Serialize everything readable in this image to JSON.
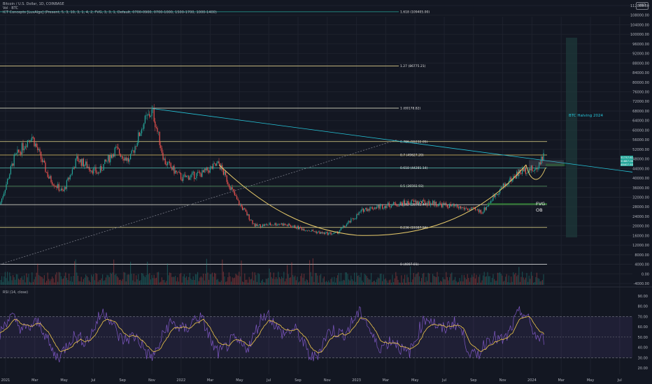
{
  "header": {
    "symbol": "Bitcoin / U.S. Dollar, 1D, COINBASE",
    "vol": "Vol · BTC",
    "indicator": "ICT Concepts [LuxAlgo] (Present, 5, 3, 10, 3, 1, 4, 2, FVG, 3, 3, 1, Default, 0700-0900, 0700-1000, 1500-1700, 1000-1400)"
  },
  "currency_button": "USD",
  "price_axis": [
    "112000.00",
    "108000.00",
    "104000.00",
    "100000.00",
    "96000.00",
    "92000.00",
    "88000.00",
    "84000.00",
    "80000.00",
    "76000.00",
    "72000.00",
    "68000.00",
    "64000.00",
    "60000.00",
    "56000.00",
    "52000.00",
    "48000.00",
    "44000.00",
    "40000.00",
    "36000.00",
    "32000.00",
    "28000.00",
    "24000.00",
    "20000.00",
    "16000.00",
    "12000.00",
    "8000.00",
    "4000.00",
    "0.00",
    "-4000.00"
  ],
  "fib_levels": [
    {
      "label": "1.618 (109405.00)",
      "price": 109405,
      "color": "#26a69a"
    },
    {
      "label": "1.27 (86775.21)",
      "price": 86775,
      "color": "#d9c98a"
    },
    {
      "label": "1 (69178.82)",
      "price": 69178,
      "color": "#d9d9c0"
    },
    {
      "label": "0.786 (55232.05)",
      "price": 55232,
      "color": "#e6d98a"
    },
    {
      "label": "0.7 (49627.20)",
      "price": 49627,
      "color": "#e6c96a"
    },
    {
      "label": "0.618 (44281.14)",
      "price": 44281,
      "color": "#4db6ac"
    },
    {
      "label": "0.5 (36592.93)",
      "price": 36592,
      "color": "#5c9e6a"
    },
    {
      "label": "0.382 (28902.44)",
      "price": 28902,
      "color": "#f0f0e0"
    },
    {
      "label": "0.236 (19387.56)",
      "price": 19387,
      "color": "#e6d98a"
    },
    {
      "label": "0 (4007.01)",
      "price": 4007,
      "color": "#f0f0f0"
    }
  ],
  "annotations": {
    "halving": "BTC Halving 2024",
    "fvg": "FVG",
    "ob": "OB"
  },
  "price_tags": [
    {
      "text": "51737.61",
      "color": "#26a69a"
    },
    {
      "text": "51687.00",
      "color": "#26a69a"
    },
    {
      "text": "48407.93",
      "color": "#26a69a"
    }
  ],
  "rsi": {
    "title": "RSI (14, close)",
    "axis": [
      "90.00",
      "80.00",
      "70.00",
      "60.00",
      "50.00",
      "40.00",
      "30.00",
      "20.00"
    ],
    "upper": 70,
    "lower": 30
  },
  "time_axis": [
    "2021",
    "Mar",
    "May",
    "Jul",
    "Sep",
    "Nov",
    "2022",
    "Mar",
    "May",
    "Jul",
    "Sep",
    "Nov",
    "2023",
    "Mar",
    "May",
    "Jul",
    "Sep",
    "Nov",
    "2024",
    "Mar",
    "May",
    "Jul"
  ],
  "colors": {
    "background": "#131722",
    "up": "#26a69a",
    "down": "#ef5350",
    "rsi_line": "#7e57c2",
    "rsi_ma": "#f2c94c",
    "cup_curve": "#e6c96a",
    "trendline": "#26c6da",
    "halving_zone": "#1e3b3a"
  }
}
